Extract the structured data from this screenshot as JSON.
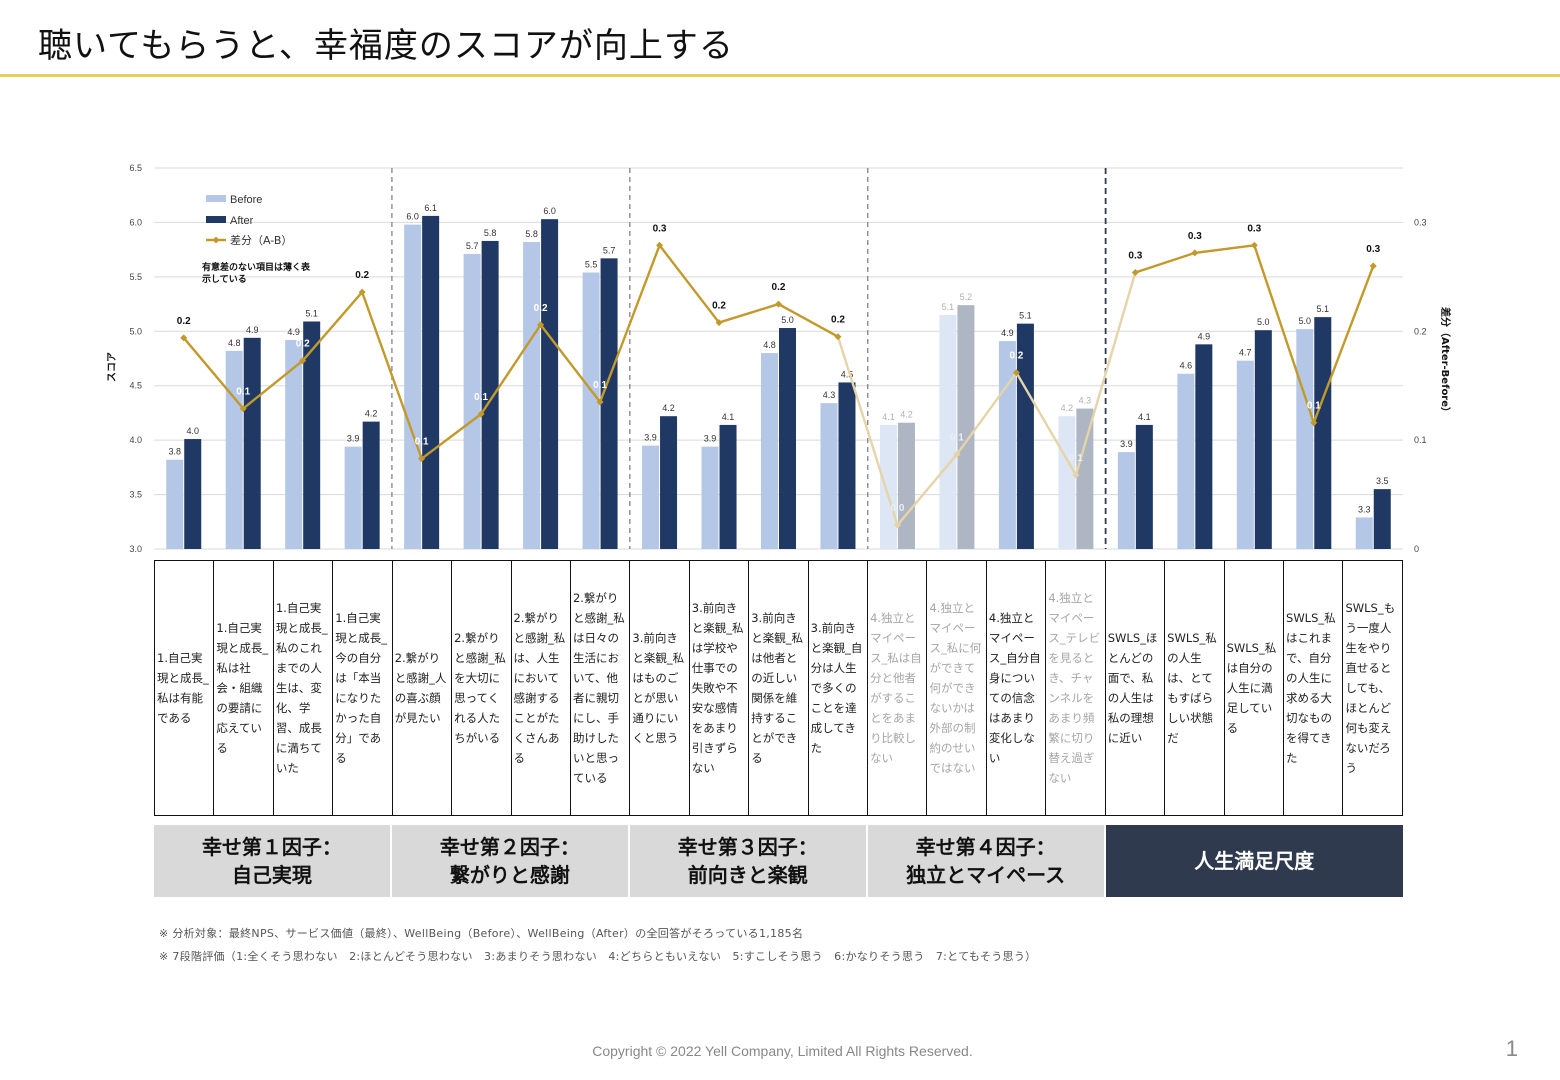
{
  "title": "聴いてもらうと、幸福度のスコアが向上する",
  "chart_data": {
    "type": "bar",
    "title": "",
    "ylabel": "スコア",
    "y2label": "差分（After-Before）",
    "ylim": [
      3.0,
      6.5
    ],
    "yticks": [
      "3.0",
      "3.5",
      "4.0",
      "4.5",
      "5.0",
      "5.5",
      "6.0",
      "6.5"
    ],
    "y2lim": [
      0,
      0.35
    ],
    "y2ticks": [
      "0",
      "0.1",
      "0.2",
      "0.3"
    ],
    "legend": {
      "before": "Before",
      "after": "After",
      "diff": "差分（A-B）"
    },
    "legend_note": [
      "有意差のない項目は薄く表",
      "示している"
    ],
    "colors": {
      "before": "#b4c7e7",
      "after": "#1f3864",
      "diff": "#c2992a",
      "before_faded": "#dde6f5",
      "after_faded": "#aeb6c3",
      "diff_faded": "#e4d4a8",
      "grid": "#d9d9d9"
    },
    "categories": [
      "1.自己実現と成長_私は有能である",
      "1.自己実現と成長_私は社会・組織の要請に応えている",
      "1.自己実現と成長_私のこれまでの人生は、変化、学習、成長に満ちていた",
      "1.自己実現と成長_今の自分は「本当になりたかった自分」である",
      "2.繋がりと感謝_人の喜ぶ顔が見たい",
      "2.繋がりと感謝_私を大切に思ってくれる人たちがいる",
      "2.繋がりと感謝_私は、人生において感謝することがたくさんある",
      "2.繋がりと感謝_私は日々の生活において、他者に親切にし、手助けしたいと思っている",
      "3.前向きと楽観_私はものごとが思い通りにいくと思う",
      "3.前向きと楽観_私は学校や仕事での失敗や不安な感情をあまり引きずらない",
      "3.前向きと楽観_私は他者との近しい関係を維持することができる",
      "3.前向きと楽観_自分は人生で多くのことを達成してきた",
      "4.独立とマイペース_私は自分と他者がすることをあまり比較しない",
      "4.独立とマイペース_私に何ができて何ができないかは外部の制約のせいではない",
      "4.独立とマイペース_自分自身についての信念はあまり変化しない",
      "4.独立とマイペース_テレビを見るとき、チャンネルをあまり頻繁に切り替え過ぎない",
      "SWLS_ほとんどの面で、私の人生は私の理想に近い",
      "SWLS_私の人生は、とてもすばらしい状態だ",
      "SWLS_私は自分の人生に満足している",
      "SWLS_私はこれまで、自分の人生に求める大切なものを得てきた",
      "SWLS_もう一度人生をやり直せるとしても、ほとんど何も変えないだろう"
    ],
    "faded": [
      false,
      false,
      false,
      false,
      false,
      false,
      false,
      false,
      false,
      false,
      false,
      false,
      true,
      true,
      false,
      true,
      false,
      false,
      false,
      false,
      false
    ],
    "series": [
      {
        "name": "Before",
        "values": [
          3.82,
          4.82,
          4.92,
          3.94,
          5.98,
          5.71,
          5.82,
          5.54,
          3.95,
          3.94,
          4.8,
          4.34,
          4.14,
          5.15,
          4.91,
          4.22,
          3.89,
          4.61,
          4.73,
          5.02,
          3.29
        ]
      },
      {
        "name": "After",
        "values": [
          4.01,
          4.94,
          5.09,
          4.17,
          6.06,
          5.83,
          6.03,
          5.67,
          4.22,
          4.14,
          5.03,
          4.53,
          4.16,
          5.24,
          5.07,
          4.29,
          4.14,
          4.88,
          5.01,
          5.13,
          3.55
        ]
      },
      {
        "name": "差分（A-B）",
        "values": [
          0.194,
          0.129,
          0.173,
          0.236,
          0.083,
          0.124,
          0.206,
          0.135,
          0.279,
          0.208,
          0.225,
          0.195,
          0.022,
          0.087,
          0.162,
          0.068,
          0.254,
          0.272,
          0.279,
          0.116,
          0.26
        ]
      }
    ],
    "before_labels": [
      "3.8",
      "4.8",
      "4.9",
      "3.9",
      "6.0",
      "5.7",
      "5.8",
      "5.5",
      "3.9",
      "3.9",
      "4.8",
      "4.3",
      "4.1",
      "5.1",
      "4.9",
      "4.2",
      "3.9",
      "4.6",
      "4.7",
      "5.0",
      "3.3"
    ],
    "after_labels": [
      "4.0",
      "4.9",
      "5.1",
      "4.2",
      "6.1",
      "5.8",
      "6.0",
      "5.7",
      "4.2",
      "4.1",
      "5.0",
      "4.5",
      "4.2",
      "5.2",
      "5.1",
      "4.3",
      "4.1",
      "4.9",
      "5.0",
      "5.1",
      "3.5"
    ],
    "diff_labels": [
      "0.2",
      "0.1",
      "0.2",
      "0.2",
      "0.1",
      "0.1",
      "0.2",
      "0.1",
      "0.3",
      "0.2",
      "0.2",
      "0.2",
      "0.0",
      "0.1",
      "0.2",
      "0.1",
      "0.3",
      "0.3",
      "0.3",
      "0.1",
      "0.3"
    ]
  },
  "table": {
    "cells": [
      "1.自己実現と成長_私は有能である",
      "1.自己実現と成長_私は社会・組織の要請に応えている",
      "1.自己実現と成長_私のこれまでの人生は、変化、学習、成長に満ちていた",
      "1.自己実現と成長_今の自分は「本当になりたかった自分」である",
      "2.繋がりと感謝_人の喜ぶ顔が見たい",
      "2.繋がりと感謝_私を大切に思ってくれる人たちがいる",
      "2.繋がりと感謝_私は、人生において感謝することがたくさんある",
      "2.繋がりと感謝_私は日々の生活において、他者に親切にし、手助けしたいと思っている",
      "3.前向きと楽観_私はものごとが思い通りにいくと思う",
      "3.前向きと楽観_私は学校や仕事での失敗や不安な感情をあまり引きずらない",
      "3.前向きと楽観_私は他者との近しい関係を維持することができる",
      "3.前向きと楽観_自分は人生で多くのことを達成してきた",
      "4.独立とマイペース_私は自分と他者がすることをあまり比較しない",
      "4.独立とマイペース_私に何ができて何ができないかは外部の制約のせいではない",
      "4.独立とマイペース_自分自身についての信念はあまり変化しない",
      "4.独立とマイペース_テレビを見るとき、チャンネルをあまり頻繁に切り替え過ぎない",
      "SWLS_ほとんどの面で、私の人生は私の理想に近い",
      "SWLS_私の人生は、とてもすばらしい状態だ",
      "SWLS_私は自分の人生に満足している",
      "SWLS_私はこれまで、自分の人生に求める大切なものを得てきた",
      "SWLS_もう一度人生をやり直せるとしても、ほとんど何も変えないだろう"
    ]
  },
  "groups": [
    {
      "label": "幸せ第１因子：\n自己実現",
      "span": 4
    },
    {
      "label": "幸せ第２因子：\n繋がりと感謝",
      "span": 4
    },
    {
      "label": "幸せ第３因子：\n前向きと楽観",
      "span": 4
    },
    {
      "label": "幸せ第４因子：\n独立とマイペース",
      "span": 4
    },
    {
      "label": "人生満足尺度",
      "span": 5
    }
  ],
  "notes": [
    "※ 分析対象：最終NPS、サービス価値（最終）、WellBeing（Before）、WellBeing（After）の全回答がそろっている1,185名",
    "※ 7段階評価（1:全くそう思わない　2:ほとんどそう思わない　3:あまりそう思わない　4:どちらともいえない　5:すこしそう思う　6:かなりそう思う　7:とてもそう思う）"
  ],
  "copyright": "Copyright © 2022 Yell Company, Limited All Rights Reserved.",
  "page_number": "1"
}
